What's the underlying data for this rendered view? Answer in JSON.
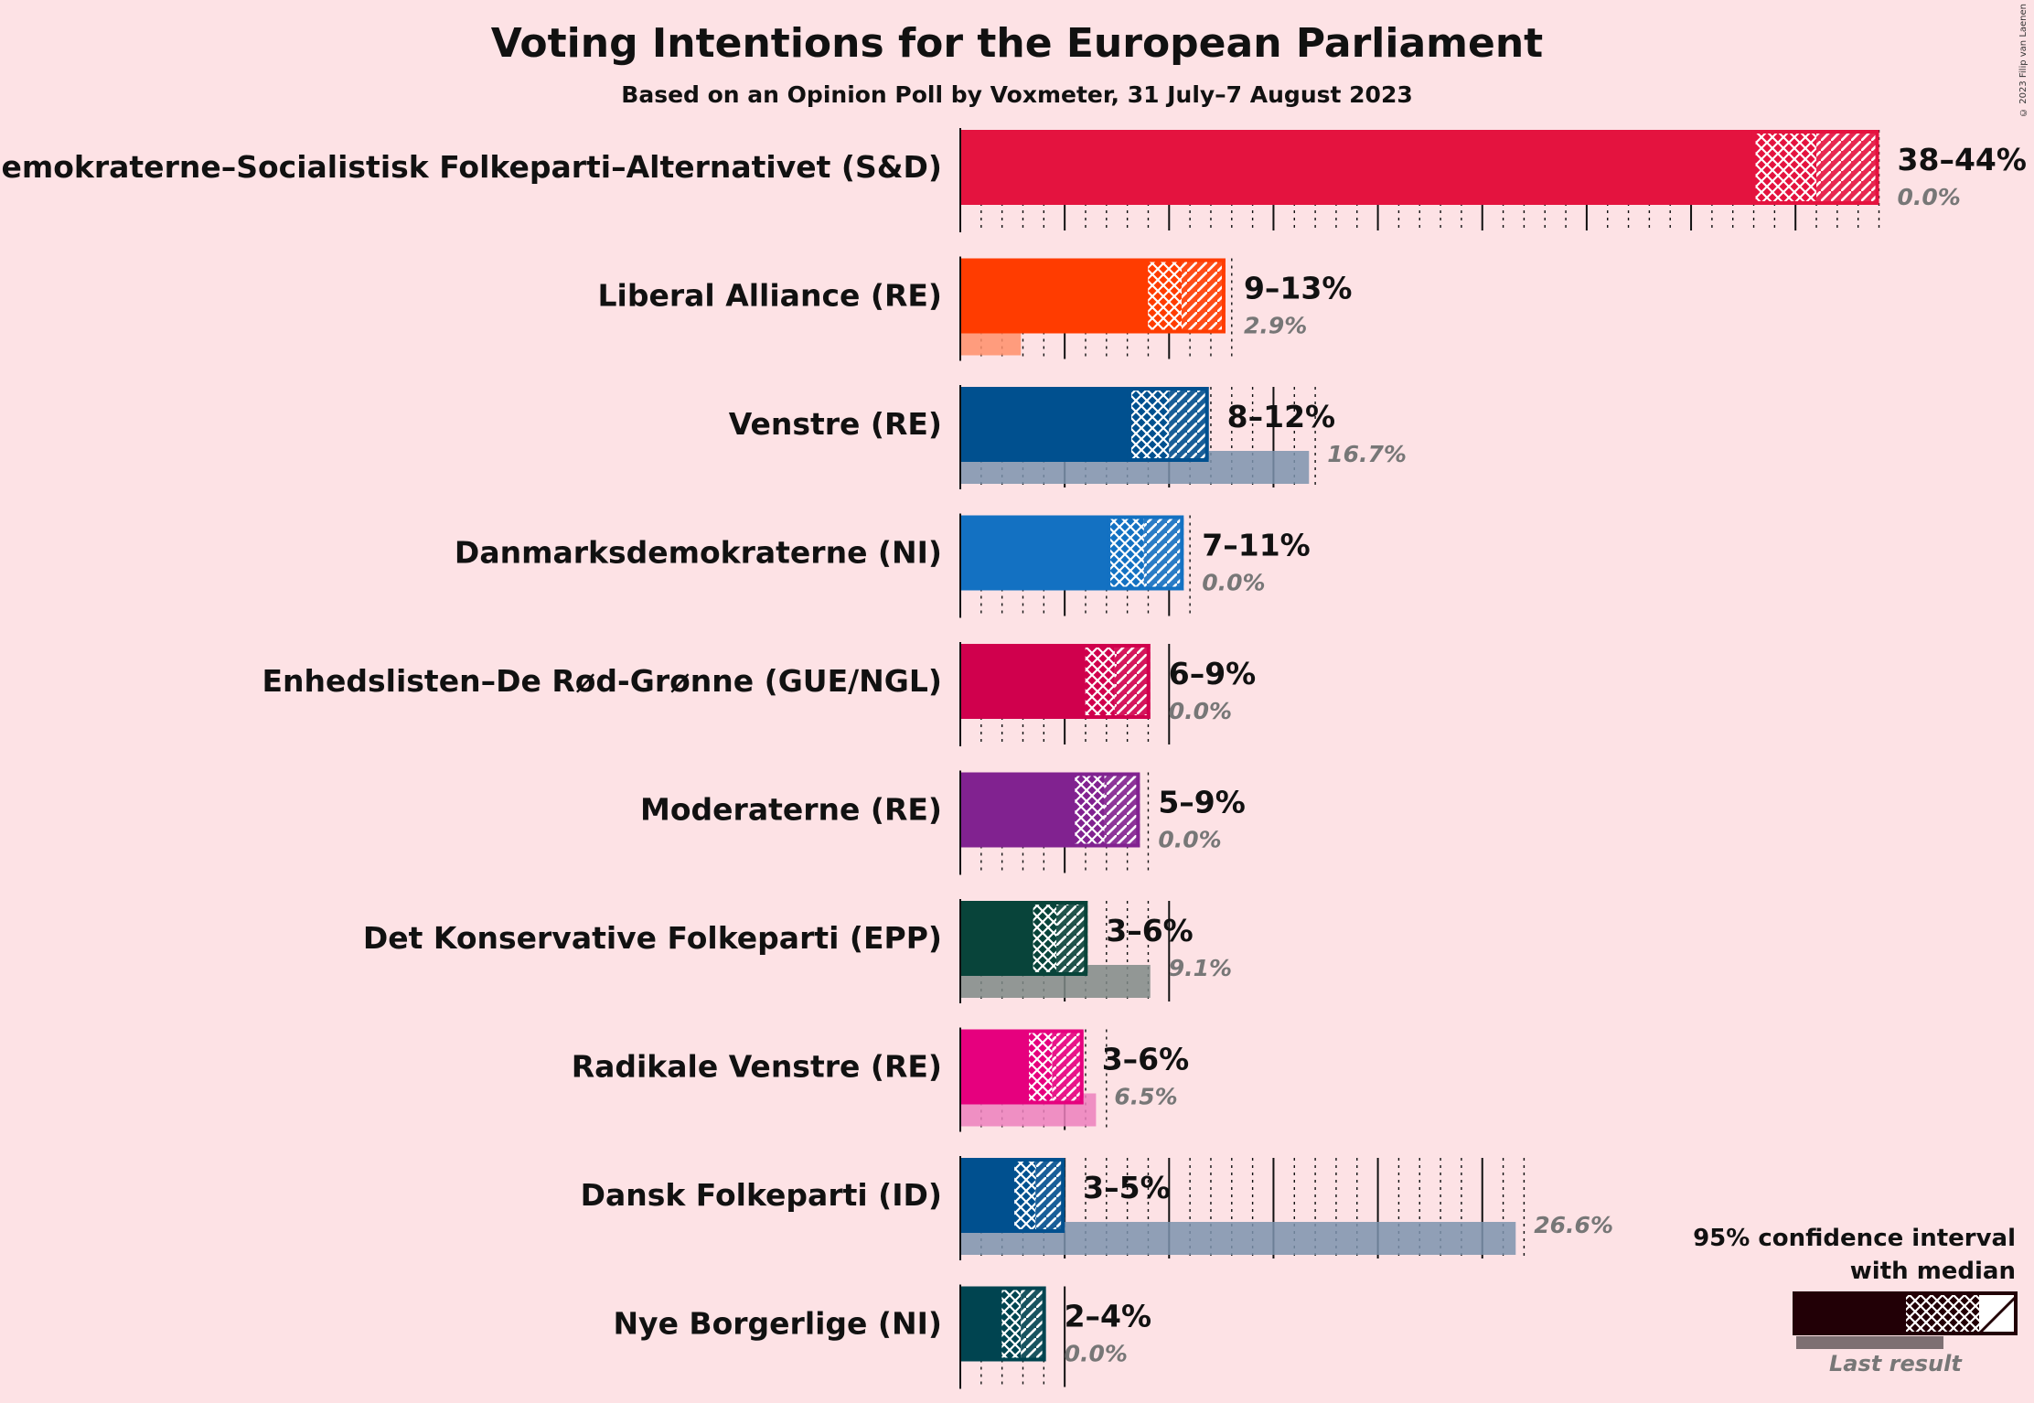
{
  "title": "Voting Intentions for the European Parliament",
  "subtitle": "Based on an Opinion Poll by Voxmeter, 31 July–7 August 2023",
  "credit": "© 2023 Filip van Laenen",
  "legend": {
    "title_line1": "95% confidence interval",
    "title_line2": "with median",
    "last_result": "Last result"
  },
  "chart_data": {
    "type": "bar",
    "orientation": "horizontal",
    "x_unit": "%",
    "xlim": [
      0,
      44
    ],
    "grid": true,
    "legend_position": "bottom-right",
    "categories": [
      "Socialdemokraterne–Socialistisk Folkeparti–Alternativet (S&D)",
      "Liberal Alliance (RE)",
      "Venstre (RE)",
      "Danmarksdemokraterne (NI)",
      "Enhedslisten–De Rød-Grønne (GUE/NGL)",
      "Moderaterne (RE)",
      "Det Konservative Folkeparti (EPP)",
      "Radikale Venstre (RE)",
      "Dansk Folkeparti (ID)",
      "Nye Borgerlige (NI)"
    ],
    "series": [
      {
        "ci_low": [
          38,
          8.9,
          8.1,
          7.1,
          5.9,
          5.4,
          3.4,
          3.2,
          2.5,
          1.9
        ],
        "median": [
          41,
          10.6,
          10.0,
          8.8,
          7.4,
          6.9,
          4.6,
          4.4,
          3.6,
          2.9
        ],
        "ci_high": [
          44,
          12.7,
          11.9,
          10.7,
          9.1,
          8.6,
          6.1,
          5.9,
          5.0,
          4.1
        ],
        "interval_labels": [
          "38–44%",
          "9–13%",
          "8–12%",
          "7–11%",
          "6–9%",
          "5–9%",
          "3–6%",
          "3–6%",
          "3–5%",
          "2–4%"
        ]
      },
      {
        "name": "Last result",
        "values": [
          0.0,
          2.9,
          16.7,
          0.0,
          0.0,
          0.0,
          9.1,
          6.5,
          26.6,
          0.0
        ],
        "labels": [
          "0.0%",
          "2.9%",
          "16.7%",
          "0.0%",
          "0.0%",
          "0.0%",
          "9.1%",
          "6.5%",
          "26.6%",
          "0.0%"
        ]
      }
    ],
    "colors": [
      "#E4133F",
      "#FF3C00",
      "#00508F",
      "#1371C2",
      "#D0004D",
      "#812290",
      "#08443A",
      "#E6007E",
      "#00508F",
      "#004450"
    ],
    "last_result_colors": [
      "#F18FA3",
      "#FF8F6B",
      "#7C93AE",
      "#83AEDB",
      "#E780A6",
      "#B88EC3",
      "#7F8A87",
      "#EC80BD",
      "#7C93AE",
      "#7C9A9F"
    ]
  }
}
